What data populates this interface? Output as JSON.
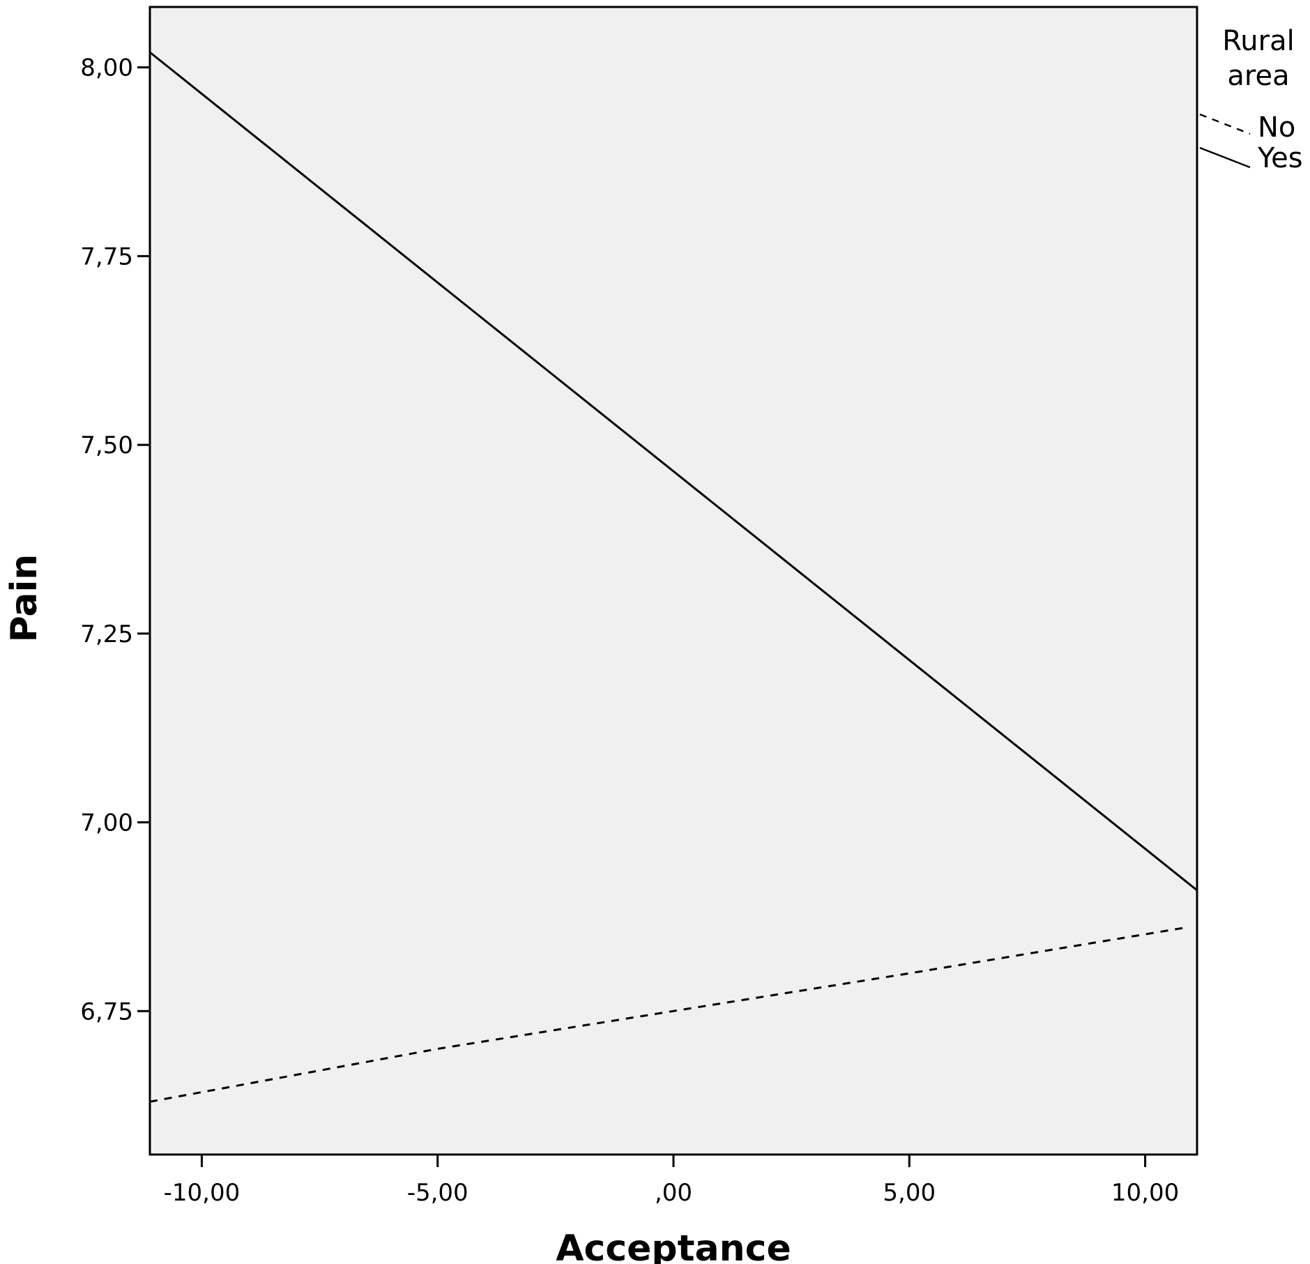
{
  "chart_data": {
    "type": "line",
    "title": "",
    "xlabel": "Acceptance",
    "ylabel": "Pain",
    "xlim": [
      -11.1,
      11.1
    ],
    "ylim": [
      6.56,
      8.08
    ],
    "xticks": [
      -10,
      -5,
      0,
      5,
      10
    ],
    "xtick_labels": [
      "-10,00",
      "-5,00",
      ",00",
      "5,00",
      "10,00"
    ],
    "yticks": [
      6.75,
      7.0,
      7.25,
      7.5,
      7.75,
      8.0
    ],
    "ytick_labels": [
      "6,75",
      "7,00",
      "7,25",
      "7,50",
      "7,75",
      "8,00"
    ],
    "grid": false,
    "plot_background": "#f0f0f0",
    "legend": {
      "title": "Rural area",
      "title_lines": [
        "Rural",
        "area"
      ],
      "position": "top-right outside plot",
      "entries": [
        {
          "label": "No",
          "style": "dashed"
        },
        {
          "label": "Yes",
          "style": "solid"
        }
      ]
    },
    "series": [
      {
        "name": "No",
        "style": "dashed",
        "color": "#000000",
        "x": [
          -11.1,
          -5,
          0,
          5,
          10.8
        ],
        "y": [
          6.63,
          6.7,
          6.75,
          6.8,
          6.86
        ]
      },
      {
        "name": "Yes",
        "style": "solid",
        "color": "#000000",
        "x": [
          -11.1,
          11.1
        ],
        "y": [
          8.02,
          6.91
        ]
      }
    ]
  }
}
